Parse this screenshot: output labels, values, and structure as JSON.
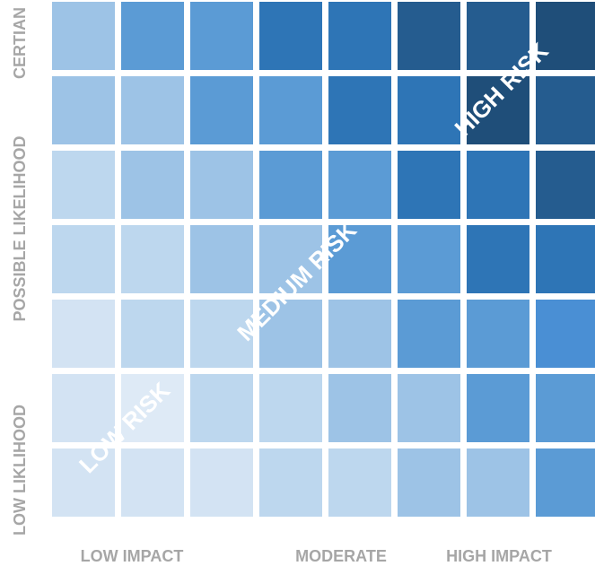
{
  "matrix": {
    "rows": 7,
    "cols": 8,
    "colors": [
      [
        "#9dc3e6",
        "#5b9bd5",
        "#5b9bd5",
        "#2e75b6",
        "#2e75b6",
        "#255c8f",
        "#255c8f",
        "#1f4e79"
      ],
      [
        "#9dc3e6",
        "#9dc3e6",
        "#5b9bd5",
        "#5b9bd5",
        "#2e75b6",
        "#2e75b6",
        "#1f4e79",
        "#255c8f"
      ],
      [
        "#bdd7ee",
        "#9dc3e6",
        "#9dc3e6",
        "#5b9bd5",
        "#5b9bd5",
        "#2e75b6",
        "#2e75b6",
        "#255c8f"
      ],
      [
        "#bdd7ee",
        "#bdd7ee",
        "#9dc3e6",
        "#9dc3e6",
        "#5b9bd5",
        "#5b9bd5",
        "#2e75b6",
        "#2e75b6"
      ],
      [
        "#d3e3f3",
        "#bdd7ee",
        "#bdd7ee",
        "#9dc3e6",
        "#9dc3e6",
        "#5b9bd5",
        "#5b9bd5",
        "#4a8fd4"
      ],
      [
        "#d3e3f3",
        "#deeaf6",
        "#bdd7ee",
        "#bdd7ee",
        "#9dc3e6",
        "#9dc3e6",
        "#5b9bd5",
        "#5b9bd5"
      ],
      [
        "#d3e3f3",
        "#d3e3f3",
        "#d3e3f3",
        "#bdd7ee",
        "#bdd7ee",
        "#9dc3e6",
        "#9dc3e6",
        "#5b9bd5"
      ]
    ]
  },
  "zones": {
    "low": "LOW RISK",
    "medium": "MEDIUM RISK",
    "high": "HIGH RISK"
  },
  "y_axis": {
    "top": "CERTIAN",
    "middle": "POSSIBLE LIKELIHOOD",
    "bottom": "LOW LIKLIHOOD"
  },
  "x_axis": {
    "left": "LOW IMPACT",
    "middle": "MODERATE",
    "right": "HIGH IMPACT"
  },
  "colors": {
    "axis_label": "#a6a6a6",
    "zone_label": "#ffffff"
  }
}
